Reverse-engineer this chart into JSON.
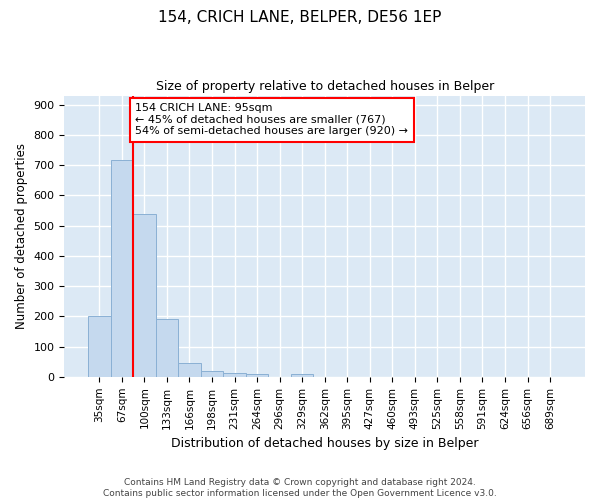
{
  "title1": "154, CRICH LANE, BELPER, DE56 1EP",
  "title2": "Size of property relative to detached houses in Belper",
  "xlabel": "Distribution of detached houses by size in Belper",
  "ylabel": "Number of detached properties",
  "bins": [
    "35sqm",
    "67sqm",
    "100sqm",
    "133sqm",
    "166sqm",
    "198sqm",
    "231sqm",
    "264sqm",
    "296sqm",
    "329sqm",
    "362sqm",
    "395sqm",
    "427sqm",
    "460sqm",
    "493sqm",
    "525sqm",
    "558sqm",
    "591sqm",
    "624sqm",
    "656sqm",
    "689sqm"
  ],
  "values": [
    200,
    717,
    537,
    192,
    47,
    20,
    14,
    10,
    0,
    10,
    0,
    0,
    0,
    0,
    0,
    0,
    0,
    0,
    0,
    0,
    0
  ],
  "bar_color": "#c5d9ee",
  "bar_edge_color": "#8ab0d4",
  "annotation_text": "154 CRICH LANE: 95sqm\n← 45% of detached houses are smaller (767)\n54% of semi-detached houses are larger (920) →",
  "annotation_box_color": "white",
  "annotation_box_edge": "red",
  "background_color": "#dce9f5",
  "footer_text": "Contains HM Land Registry data © Crown copyright and database right 2024.\nContains public sector information licensed under the Open Government Licence v3.0.",
  "ylim": [
    0,
    930
  ],
  "yticks": [
    0,
    100,
    200,
    300,
    400,
    500,
    600,
    700,
    800,
    900
  ],
  "red_line_x": 1.5
}
